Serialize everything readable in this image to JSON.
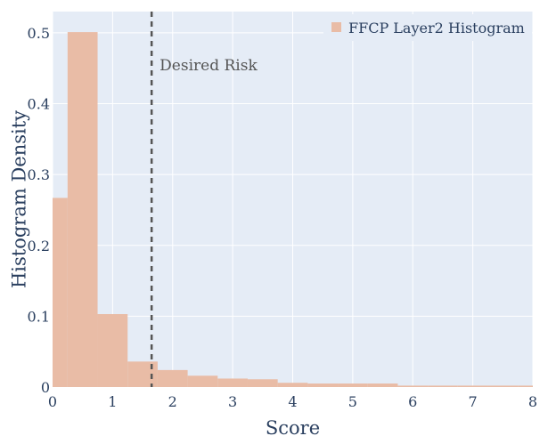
{
  "chart_data": {
    "type": "bar",
    "xlabel": "Score",
    "ylabel": "Histogram Density",
    "xlim": [
      0,
      8
    ],
    "ylim": [
      0,
      0.53
    ],
    "xticks": [
      0,
      1,
      2,
      3,
      4,
      5,
      6,
      7,
      8
    ],
    "yticks": [
      0,
      0.1,
      0.2,
      0.3,
      0.4,
      0.5
    ],
    "grid": true,
    "legend_position": "top-right",
    "series": [
      {
        "name": "FFCP Layer2 Histogram",
        "color": "#e9bca6",
        "bin_edges": [
          0,
          0.25,
          0.75,
          1.25,
          1.75,
          2.25,
          2.75,
          3.25,
          3.75,
          4.25,
          4.75,
          5.25,
          5.75,
          6.25,
          6.75,
          7.25,
          7.75,
          8.0
        ],
        "values": [
          0.267,
          0.501,
          0.103,
          0.036,
          0.024,
          0.016,
          0.012,
          0.011,
          0.006,
          0.005,
          0.005,
          0.005,
          0.002,
          0.002,
          0.002,
          0.002,
          0.002
        ]
      }
    ],
    "vline": {
      "x": 1.65,
      "label": "Desired Risk",
      "style": "dashed",
      "color": "#555555"
    }
  }
}
